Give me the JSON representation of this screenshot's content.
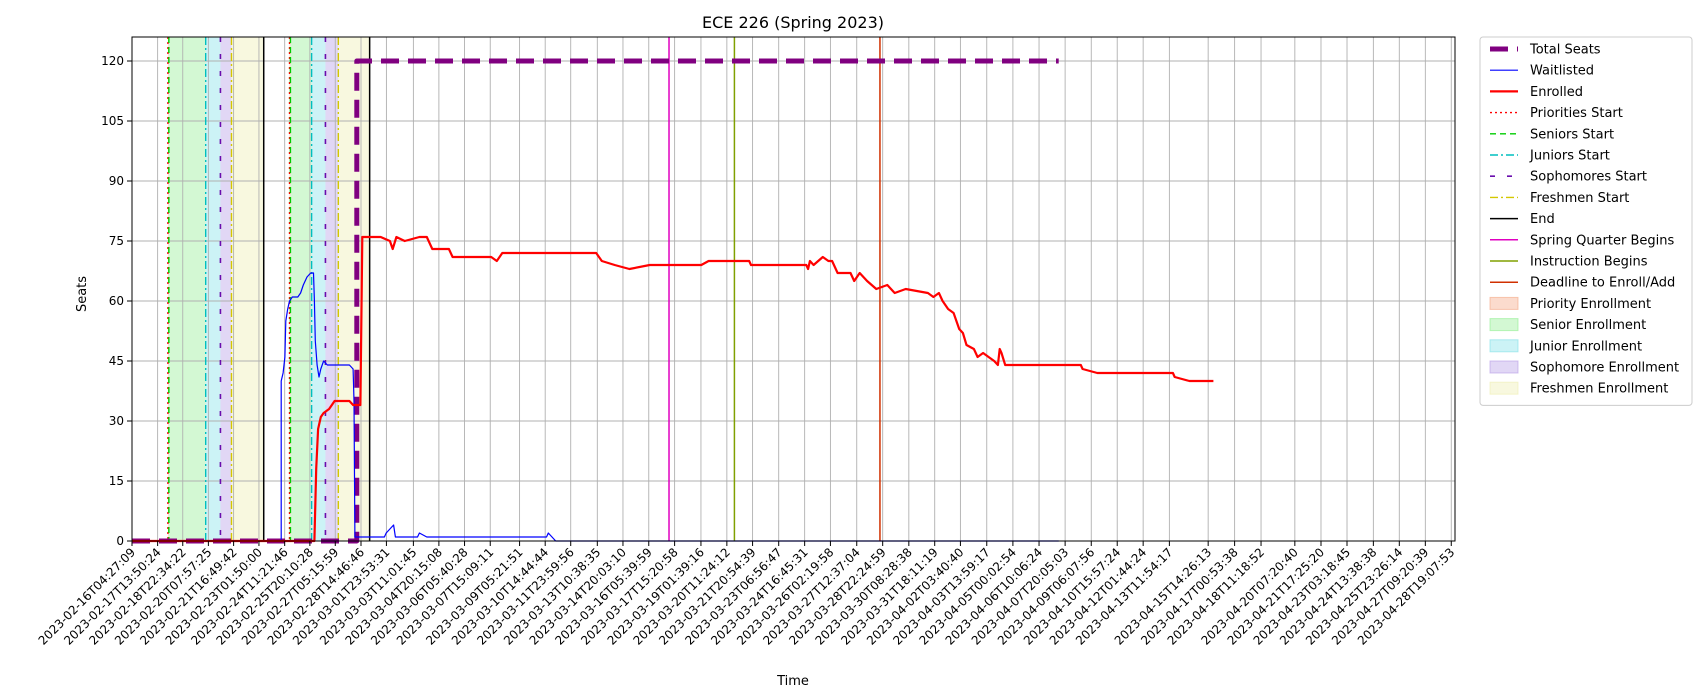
{
  "chart_data": {
    "type": "line",
    "title": "ECE 226 (Spring 2023)",
    "xlabel": "Time",
    "ylabel": "Seats",
    "ylim": [
      0,
      126
    ],
    "xlim": [
      "2023-02-16T04:27:09",
      "2023-04-29T00:00:00"
    ],
    "yticks": [
      0,
      15,
      30,
      45,
      60,
      75,
      90,
      105,
      120
    ],
    "xtick_labels": [
      "2023-02-16T04:27:09",
      "2023-02-17T13:50:24",
      "2023-02-18T22:34:22",
      "2023-02-20T07:57:25",
      "2023-02-21T16:49:42",
      "2023-02-23T01:50:00",
      "2023-02-24T11:21:46",
      "2023-02-25T20:10:28",
      "2023-02-27T05:15:59",
      "2023-02-28T14:46:46",
      "2023-03-01T23:53:31",
      "2023-03-03T11:01:45",
      "2023-03-04T20:15:08",
      "2023-03-06T05:40:28",
      "2023-03-07T15:09:11",
      "2023-03-09T05:21:51",
      "2023-03-10T14:44:44",
      "2023-03-11T23:59:56",
      "2023-03-13T10:38:35",
      "2023-03-14T20:03:10",
      "2023-03-16T05:39:59",
      "2023-03-17T15:20:58",
      "2023-03-19T01:39:16",
      "2023-03-20T11:24:12",
      "2023-03-21T20:54:39",
      "2023-03-23T06:56:47",
      "2023-03-24T16:45:31",
      "2023-03-26T02:19:58",
      "2023-03-27T12:37:04",
      "2023-03-28T22:24:59",
      "2023-03-30T08:28:38",
      "2023-03-31T18:11:19",
      "2023-04-02T03:40:40",
      "2023-04-03T13:59:17",
      "2023-04-05T00:02:54",
      "2023-04-06T10:06:24",
      "2023-04-07T20:05:03",
      "2023-04-09T06:07:56",
      "2023-04-10T15:57:24",
      "2023-04-12T01:44:24",
      "2023-04-13T11:54:17",
      "2023-04-15T14:26:13",
      "2023-04-17T00:53:38",
      "2023-04-18T11:18:52",
      "2023-04-20T07:20:40",
      "2023-04-21T17:25:20",
      "2023-04-23T03:18:45",
      "2023-04-24T13:38:38",
      "2023-04-25T23:26:14",
      "2023-04-27T09:20:39",
      "2023-04-28T19:07:53"
    ],
    "grid": true,
    "legend_position": "outside-right",
    "series": [
      {
        "name": "Total Seats",
        "color": "#800080",
        "style": "dashed-thick",
        "points": [
          [
            0,
            0
          ],
          [
            12.2,
            0
          ],
          [
            12.2,
            120
          ],
          [
            50.3,
            120
          ]
        ]
      },
      {
        "name": "Waitlisted",
        "color": "#0000ff",
        "style": "solid-thin",
        "points": [
          [
            0,
            0
          ],
          [
            8.1,
            0
          ],
          [
            8.1,
            40
          ],
          [
            8.2,
            42
          ],
          [
            8.3,
            46
          ],
          [
            8.35,
            55
          ],
          [
            8.45,
            58
          ],
          [
            8.55,
            60
          ],
          [
            8.7,
            61
          ],
          [
            9.0,
            61
          ],
          [
            9.15,
            62
          ],
          [
            9.3,
            64
          ],
          [
            9.5,
            66
          ],
          [
            9.7,
            67
          ],
          [
            9.85,
            67
          ],
          [
            9.9,
            60
          ],
          [
            9.95,
            50
          ],
          [
            10.05,
            44
          ],
          [
            10.15,
            41
          ],
          [
            10.25,
            43
          ],
          [
            10.4,
            45
          ],
          [
            10.6,
            44
          ],
          [
            11.0,
            44
          ],
          [
            11.8,
            44
          ],
          [
            12.0,
            43
          ],
          [
            12.05,
            35
          ],
          [
            12.1,
            1
          ],
          [
            13.0,
            1
          ],
          [
            13.7,
            1
          ],
          [
            13.8,
            2
          ],
          [
            14.0,
            3
          ],
          [
            14.2,
            4
          ],
          [
            14.3,
            1
          ],
          [
            15.5,
            1
          ],
          [
            15.6,
            2
          ],
          [
            16.0,
            1
          ],
          [
            22.5,
            1
          ],
          [
            22.6,
            2
          ],
          [
            23.0,
            0
          ],
          [
            50.3,
            0
          ]
        ]
      },
      {
        "name": "Enrolled",
        "color": "#ff0000",
        "style": "solid-thick",
        "points": [
          [
            0,
            0
          ],
          [
            9.9,
            0
          ],
          [
            10.0,
            18
          ],
          [
            10.1,
            28
          ],
          [
            10.25,
            31
          ],
          [
            10.4,
            32
          ],
          [
            10.7,
            33
          ],
          [
            11.0,
            35
          ],
          [
            11.8,
            35
          ],
          [
            12.0,
            34
          ],
          [
            12.4,
            34
          ],
          [
            12.5,
            76
          ],
          [
            13.0,
            76
          ],
          [
            13.5,
            76
          ],
          [
            14.0,
            75
          ],
          [
            14.15,
            73
          ],
          [
            14.35,
            76
          ],
          [
            14.8,
            75
          ],
          [
            15.6,
            76
          ],
          [
            16.0,
            76
          ],
          [
            16.3,
            73
          ],
          [
            17.2,
            73
          ],
          [
            17.4,
            71
          ],
          [
            19.5,
            71
          ],
          [
            19.8,
            70
          ],
          [
            20.1,
            72
          ],
          [
            25.2,
            72
          ],
          [
            25.5,
            70
          ],
          [
            26.2,
            69
          ],
          [
            27.0,
            68
          ],
          [
            28.1,
            69
          ],
          [
            30.9,
            69
          ],
          [
            31.3,
            70
          ],
          [
            33.5,
            70
          ],
          [
            33.6,
            69
          ],
          [
            36.6,
            69
          ],
          [
            36.7,
            68
          ],
          [
            36.8,
            70
          ],
          [
            37.0,
            69
          ],
          [
            37.5,
            71
          ],
          [
            37.8,
            70
          ],
          [
            38.0,
            70
          ],
          [
            38.3,
            67
          ],
          [
            39.0,
            67
          ],
          [
            39.2,
            65
          ],
          [
            39.5,
            67
          ],
          [
            39.9,
            65
          ],
          [
            40.4,
            63
          ],
          [
            41.0,
            64
          ],
          [
            41.4,
            62
          ],
          [
            42.0,
            63
          ],
          [
            43.2,
            62
          ],
          [
            43.5,
            61
          ],
          [
            43.8,
            62
          ],
          [
            44.0,
            60
          ],
          [
            44.3,
            58
          ],
          [
            44.6,
            57
          ],
          [
            44.9,
            53
          ],
          [
            45.1,
            52
          ],
          [
            45.3,
            49
          ],
          [
            45.7,
            48
          ],
          [
            45.9,
            46
          ],
          [
            46.2,
            47
          ],
          [
            46.5,
            46
          ],
          [
            46.8,
            45
          ],
          [
            47.0,
            44
          ],
          [
            47.1,
            48
          ],
          [
            47.2,
            47
          ],
          [
            47.4,
            44
          ],
          [
            51.5,
            44
          ],
          [
            51.6,
            43
          ],
          [
            52.4,
            42
          ],
          [
            56.5,
            42
          ],
          [
            56.6,
            41
          ],
          [
            57.4,
            40
          ],
          [
            58.7,
            40
          ]
        ]
      }
    ],
    "vertical_markers": [
      {
        "name": "Priorities Start",
        "color": "#ff0000",
        "style": "dotted",
        "x": [
          1.95,
          8.55
        ]
      },
      {
        "name": "Seniors Start",
        "color": "#00cc00",
        "style": "dashed",
        "x": [
          2.0,
          8.6
        ]
      },
      {
        "name": "Juniors Start",
        "color": "#00bfbf",
        "style": "dashdot",
        "x": [
          4.0,
          9.75
        ]
      },
      {
        "name": "Sophomores Start",
        "color": "#6a0dad",
        "style": "sparse-dashed",
        "x": [
          4.8,
          10.5
        ]
      },
      {
        "name": "Freshmen Start",
        "color": "#d4c800",
        "style": "dashdot",
        "x": [
          5.4,
          11.2
        ]
      },
      {
        "name": "End",
        "color": "#000000",
        "style": "solid",
        "x": [
          7.15,
          12.9
        ]
      },
      {
        "name": "Spring Quarter Begins",
        "color": "#e000c0",
        "style": "solid",
        "x": [
          29.15
        ]
      },
      {
        "name": "Instruction Begins",
        "color": "#80a000",
        "style": "solid",
        "x": [
          32.7
        ]
      },
      {
        "name": "Deadline to Enroll/Add",
        "color": "#d03000",
        "style": "solid",
        "x": [
          40.6
        ]
      }
    ],
    "shaded_periods": [
      {
        "name": "Priority Enrollment",
        "color": "#f4a582",
        "ranges": [
          [
            1.95,
            2.0
          ],
          [
            8.55,
            8.6
          ]
        ]
      },
      {
        "name": "Senior Enrollment",
        "color": "#90ee90",
        "ranges": [
          [
            2.0,
            4.0
          ],
          [
            8.6,
            9.75
          ]
        ]
      },
      {
        "name": "Junior Enrollment",
        "color": "#7fe0e8",
        "ranges": [
          [
            4.0,
            4.8
          ],
          [
            9.75,
            10.5
          ]
        ]
      },
      {
        "name": "Sophomore Enrollment",
        "color": "#b59be6",
        "ranges": [
          [
            4.8,
            5.4
          ],
          [
            10.5,
            11.2
          ]
        ]
      },
      {
        "name": "Freshmen Enrollment",
        "color": "#eeeeb0",
        "ranges": [
          [
            5.4,
            7.15
          ],
          [
            11.2,
            12.9
          ]
        ]
      }
    ],
    "legend": [
      "Total Seats",
      "Waitlisted",
      "Enrolled",
      "Priorities Start",
      "Seniors Start",
      "Juniors Start",
      "Sophomores Start",
      "Freshmen Start",
      "End",
      "Spring Quarter Begins",
      "Instruction Begins",
      "Deadline to Enroll/Add",
      "Priority Enrollment",
      "Senior Enrollment",
      "Junior Enrollment",
      "Sophomore Enrollment",
      "Freshmen Enrollment"
    ]
  }
}
